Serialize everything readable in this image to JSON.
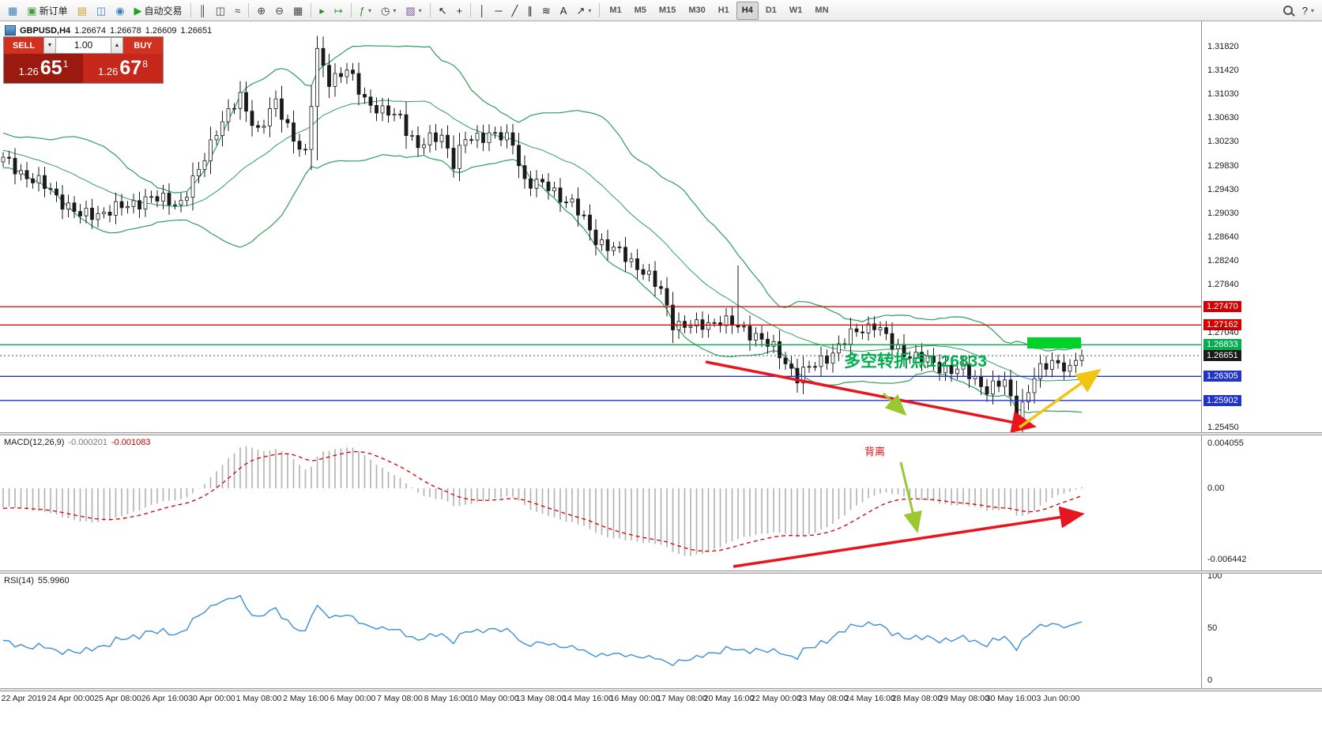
{
  "toolbar": {
    "caret_glyph": "▾",
    "items": [
      {
        "type": "icon",
        "name": "chart-window-icon",
        "glyph": "▦",
        "color": "#3f7fbf"
      },
      {
        "type": "button",
        "name": "new-order-button",
        "glyph": "▣",
        "color": "#3f9d3f",
        "label": "新订单"
      },
      {
        "type": "icon",
        "name": "profiles-icon",
        "glyph": "▤",
        "color": "#c9a227"
      },
      {
        "type": "icon",
        "name": "market-watch-icon",
        "glyph": "◫",
        "color": "#3f7fbf"
      },
      {
        "type": "icon",
        "name": "data-window-icon",
        "glyph": "◉",
        "color": "#3f7fbf"
      },
      {
        "type": "button",
        "name": "auto-trading-button",
        "glyph": "▶",
        "color": "#18a418",
        "label": "自动交易"
      },
      {
        "type": "sep"
      },
      {
        "type": "icon",
        "name": "bar-chart-mode-icon",
        "glyph": "║",
        "color": "#444"
      },
      {
        "type": "icon",
        "name": "candlestick-mode-icon",
        "glyph": "◫",
        "color": "#444"
      },
      {
        "type": "icon",
        "name": "line-chart-mode-icon",
        "glyph": "≈",
        "color": "#444"
      },
      {
        "type": "sep"
      },
      {
        "type": "icon",
        "name": "zoom-in-icon",
        "glyph": "⊕",
        "color": "#444"
      },
      {
        "type": "icon",
        "name": "zoom-out-icon",
        "glyph": "⊖",
        "color": "#444"
      },
      {
        "type": "icon",
        "name": "tile-windows-icon",
        "glyph": "▦",
        "color": "#444"
      },
      {
        "type": "sep"
      },
      {
        "type": "icon",
        "name": "auto-scroll-icon",
        "glyph": "▸",
        "color": "#2f8f2f"
      },
      {
        "type": "icon",
        "name": "chart-shift-icon",
        "glyph": "↦",
        "color": "#2f8f2f"
      },
      {
        "type": "sep"
      },
      {
        "type": "dropdown",
        "name": "indicators-button",
        "glyph": "ƒ",
        "color": "#2f8f2f"
      },
      {
        "type": "dropdown",
        "name": "periods-button",
        "glyph": "◷",
        "color": "#444"
      },
      {
        "type": "dropdown",
        "name": "templates-button",
        "glyph": "▨",
        "color": "#7a5c9e"
      },
      {
        "type": "sep"
      },
      {
        "type": "icon",
        "name": "cursor-icon",
        "glyph": "↖",
        "color": "#222"
      },
      {
        "type": "icon",
        "name": "crosshair-icon",
        "glyph": "+",
        "color": "#222"
      },
      {
        "type": "sep"
      },
      {
        "type": "icon",
        "name": "vertical-line-icon",
        "glyph": "│",
        "color": "#222"
      },
      {
        "type": "icon",
        "name": "horizontal-line-icon",
        "glyph": "─",
        "color": "#222"
      },
      {
        "type": "icon",
        "name": "trendline-icon",
        "glyph": "╱",
        "color": "#222"
      },
      {
        "type": "icon",
        "name": "equidistant-channel-icon",
        "glyph": "∥",
        "color": "#222"
      },
      {
        "type": "icon",
        "name": "fibonacci-icon",
        "glyph": "≋",
        "color": "#222"
      },
      {
        "type": "icon",
        "name": "text-label-icon",
        "glyph": "A",
        "color": "#222"
      },
      {
        "type": "dropdown",
        "name": "arrows-icon",
        "glyph": "↗",
        "color": "#222"
      },
      {
        "type": "sep"
      },
      {
        "type": "tf",
        "name": "timeframe-m1",
        "label": "M1"
      },
      {
        "type": "tf",
        "name": "timeframe-m5",
        "label": "M5"
      },
      {
        "type": "tf",
        "name": "timeframe-m15",
        "label": "M15"
      },
      {
        "type": "tf",
        "name": "timeframe-m30",
        "label": "M30"
      },
      {
        "type": "tf",
        "name": "timeframe-h1",
        "label": "H1"
      },
      {
        "type": "tf",
        "name": "timeframe-h4",
        "label": "H4",
        "active": true
      },
      {
        "type": "tf",
        "name": "timeframe-d1",
        "label": "D1"
      },
      {
        "type": "tf",
        "name": "timeframe-w1",
        "label": "W1"
      },
      {
        "type": "tf",
        "name": "timeframe-mn",
        "label": "MN"
      },
      {
        "type": "spacer"
      },
      {
        "type": "search",
        "name": "search-icon"
      },
      {
        "type": "dropdown",
        "name": "help-button",
        "glyph": "?",
        "color": "#222"
      }
    ]
  },
  "chart_header": {
    "symbol_period": "GBPUSD,H4",
    "open": "1.26674",
    "high": "1.26678",
    "low": "1.26609",
    "close": "1.26651"
  },
  "trade_panel": {
    "sell_label": "SELL",
    "buy_label": "BUY",
    "volume": "1.00",
    "dec_glyph": "▼",
    "inc_glyph": "▲",
    "sell_price": {
      "small": "1.26",
      "big": "65",
      "sup": "1"
    },
    "buy_price": {
      "small": "1.26",
      "big": "67",
      "sup": "8"
    }
  },
  "annotations": {
    "pivot_text": "多空转折点1.26833",
    "divergence_text": "背离",
    "pivot_color": "#00b050",
    "divergence_color": "#e8141e",
    "trend_red": "#e8141e",
    "arrow_yellow": "#f2c413",
    "arrow_green": "#9ac832",
    "rect_green": "#00d22a"
  },
  "price_scale": {
    "labels": [
      {
        "text": "1.31820",
        "price": 1.3182,
        "kind": "plain"
      },
      {
        "text": "1.31420",
        "price": 1.3142,
        "kind": "plain"
      },
      {
        "text": "1.31030",
        "price": 1.3103,
        "kind": "plain"
      },
      {
        "text": "1.30630",
        "price": 1.3063,
        "kind": "plain"
      },
      {
        "text": "1.30230",
        "price": 1.3023,
        "kind": "plain"
      },
      {
        "text": "1.29830",
        "price": 1.2983,
        "kind": "plain"
      },
      {
        "text": "1.29430",
        "price": 1.2943,
        "kind": "plain"
      },
      {
        "text": "1.29030",
        "price": 1.2903,
        "kind": "plain"
      },
      {
        "text": "1.28640",
        "price": 1.2864,
        "kind": "plain"
      },
      {
        "text": "1.28240",
        "price": 1.2824,
        "kind": "plain"
      },
      {
        "text": "1.27840",
        "price": 1.2784,
        "kind": "plain"
      },
      {
        "text": "1.27470",
        "price": 1.2747,
        "kind": "red"
      },
      {
        "text": "1.27162",
        "price": 1.27162,
        "kind": "red"
      },
      {
        "text": "1.27040",
        "price": 1.2704,
        "kind": "plain"
      },
      {
        "text": "1.26833",
        "price": 1.26833,
        "kind": "green"
      },
      {
        "text": "1.26651",
        "price": 1.26651,
        "kind": "current"
      },
      {
        "text": "1.26305",
        "price": 1.26305,
        "kind": "blue"
      },
      {
        "text": "1.25902",
        "price": 1.25902,
        "kind": "blue"
      },
      {
        "text": "1.25450",
        "price": 1.2545,
        "kind": "plain"
      }
    ]
  },
  "macd_panel": {
    "title": "MACD(12,26,9)",
    "main_value": "-0.000201",
    "signal_value": "-0.001083",
    "scale": [
      {
        "text": "0.004055",
        "value": 0.004055
      },
      {
        "text": "0.00",
        "value": 0
      },
      {
        "text": "-0.006442",
        "value": -0.006442
      }
    ]
  },
  "rsi_panel": {
    "title": "RSI(14)",
    "value": "55.9960",
    "scale": [
      {
        "text": "100",
        "value": 100
      },
      {
        "text": "50",
        "value": 50
      },
      {
        "text": "0",
        "value": 0
      }
    ]
  },
  "time_axis": {
    "labels": [
      "22 Apr 2019",
      "24 Apr 00:00",
      "25 Apr 08:00",
      "26 Apr 16:00",
      "30 Apr 00:00",
      "1 May 08:00",
      "2 May 16:00",
      "6 May 00:00",
      "7 May 08:00",
      "8 May 16:00",
      "10 May 00:00",
      "13 May 08:00",
      "14 May 16:00",
      "16 May 00:00",
      "17 May 08:00",
      "20 May 16:00",
      "22 May 00:00",
      "23 May 08:00",
      "24 May 16:00",
      "28 May 08:00",
      "29 May 08:00",
      "30 May 16:00",
      "3 Jun 00:00"
    ]
  },
  "colors": {
    "bull": "#ffffff",
    "bear": "#1a1a1a",
    "candle_border": "#1a1a1a",
    "bands": "#2e9e5e",
    "level_red": "#d40000",
    "level_green": "#00b050",
    "level_blue": "#2233cc",
    "current_price_line": "#555555",
    "macd_hist": "#b0b0b0",
    "macd_signal": "#d40000",
    "rsi_line": "#3d8fd6",
    "tag_red": "#d40000",
    "tag_green": "#00b050",
    "tag_blue": "#2233cc",
    "tag_black": "#1a1a1a"
  },
  "chart_data": {
    "type": "candlestick",
    "symbol": "GBPUSD",
    "timeframe": "H4",
    "price_axis_range": {
      "top": 1.3182,
      "bottom": 1.2545
    },
    "current_price": 1.26651,
    "levels": [
      {
        "price": 1.2747,
        "kind": "red"
      },
      {
        "price": 1.27162,
        "kind": "red"
      },
      {
        "price": 1.26833,
        "kind": "green"
      },
      {
        "price": 1.26305,
        "kind": "blue"
      },
      {
        "price": 1.25902,
        "kind": "blue"
      }
    ],
    "candle_count": 183,
    "price_path_anchors": [
      [
        -26,
        1.3075
      ],
      [
        -18,
        1.303
      ],
      [
        -10,
        1.3005
      ],
      [
        0,
        1.2992
      ],
      [
        4,
        1.2966
      ],
      [
        8,
        1.2941
      ],
      [
        13,
        1.2898
      ],
      [
        20,
        1.2912
      ],
      [
        24,
        1.2928
      ],
      [
        30,
        1.2922
      ],
      [
        33,
        1.2972
      ],
      [
        36,
        1.3045
      ],
      [
        40,
        1.3095
      ],
      [
        43,
        1.3042
      ],
      [
        46,
        1.3086
      ],
      [
        49,
        1.3032
      ],
      [
        51,
        1.2999
      ],
      [
        53,
        1.3172
      ],
      [
        55,
        1.3128
      ],
      [
        58,
        1.314
      ],
      [
        61,
        1.3096
      ],
      [
        64,
        1.3071
      ],
      [
        67,
        1.3064
      ],
      [
        70,
        1.3013
      ],
      [
        74,
        1.3036
      ],
      [
        76,
        1.2988
      ],
      [
        78,
        1.3024
      ],
      [
        82,
        1.3038
      ],
      [
        86,
        1.3021
      ],
      [
        88,
        1.2958
      ],
      [
        92,
        1.2946
      ],
      [
        96,
        1.2919
      ],
      [
        100,
        1.2861
      ],
      [
        104,
        1.2836
      ],
      [
        108,
        1.2809
      ],
      [
        111,
        1.2771
      ],
      [
        113,
        1.2721
      ],
      [
        117,
        1.2712
      ],
      [
        121,
        1.2726
      ],
      [
        124,
        1.2711
      ],
      [
        127,
        1.2701
      ],
      [
        131,
        1.2666
      ],
      [
        134,
        1.2631
      ],
      [
        137,
        1.2649
      ],
      [
        140,
        1.2672
      ],
      [
        144,
        1.2706
      ],
      [
        147,
        1.2719
      ],
      [
        150,
        1.2681
      ],
      [
        154,
        1.2663
      ],
      [
        158,
        1.2647
      ],
      [
        162,
        1.2639
      ],
      [
        166,
        1.2611
      ],
      [
        169,
        1.2619
      ],
      [
        171,
        1.2563
      ],
      [
        174,
        1.2629
      ],
      [
        177,
        1.2656
      ],
      [
        180,
        1.2649
      ],
      [
        182,
        1.26651
      ]
    ],
    "wick_spikes": {
      "53": {
        "high": 1.32,
        "low": 1.2992
      },
      "76": {
        "low": 1.2963
      },
      "124": {
        "high": 1.2816
      },
      "171": {
        "low": 1.2552
      }
    },
    "bollinger": {
      "period": 20,
      "deviation": 2
    },
    "macd": {
      "fast": 12,
      "slow": 26,
      "signal": 9
    },
    "rsi": {
      "period": 14
    }
  }
}
